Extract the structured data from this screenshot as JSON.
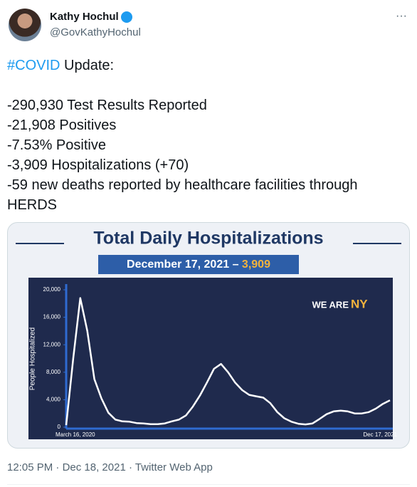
{
  "tweet": {
    "name": "Kathy Hochul",
    "handle": "@GovKathyHochul",
    "more": "···",
    "hashtag": "#COVID",
    "first_line_rest": "Update:",
    "lines": [
      "-290,930 Test Results Reported",
      "-21,908 Positives",
      "-7.53% Positive",
      "-3,909 Hospitalizations (+70)",
      "-59 new deaths reported by healthcare facilities through HERDS"
    ],
    "time": "12:05 PM",
    "date": "Dec 18, 2021",
    "source": "Twitter Web App",
    "separator": "·"
  },
  "chart_data": {
    "type": "line",
    "title": "Total Daily Hospitalizations",
    "subtitle": "December 17, 2021 –",
    "subtitle_value": "3,909",
    "logo": "WE ARE",
    "logo_accent": "NY",
    "y_label": "People Hospitalized",
    "categories": [
      "March 16, 2020",
      null,
      null,
      null,
      null,
      null,
      null,
      null,
      null,
      null,
      null,
      null,
      null,
      null,
      null,
      null,
      null,
      null,
      null,
      null,
      null,
      null,
      null,
      null,
      null,
      null,
      null,
      null,
      null,
      null,
      null,
      null,
      null,
      null,
      null,
      null,
      null,
      null,
      null,
      null,
      null,
      null,
      null,
      null,
      null,
      null,
      "Dec 17, 2021"
    ],
    "values": [
      300,
      10000,
      18800,
      14000,
      7000,
      4200,
      2100,
      1100,
      850,
      800,
      600,
      550,
      450,
      450,
      550,
      850,
      1100,
      1700,
      3000,
      4600,
      6500,
      8500,
      9200,
      8000,
      6500,
      5400,
      4700,
      4500,
      4300,
      3500,
      2200,
      1300,
      800,
      500,
      400,
      550,
      1200,
      1900,
      2300,
      2400,
      2300,
      2000,
      2000,
      2200,
      2700,
      3400,
      3909
    ],
    "color": "#ffffff",
    "ylim": [
      0,
      20000
    ],
    "yticks": [
      0,
      {
        "value": 4000,
        "label": "4,000"
      },
      {
        "value": 8000,
        "label": "8,000"
      },
      {
        "value": 12000,
        "label": "12,000"
      },
      {
        "value": 16000,
        "label": "16,000"
      },
      {
        "value": 20000,
        "label": "20,000"
      }
    ]
  }
}
